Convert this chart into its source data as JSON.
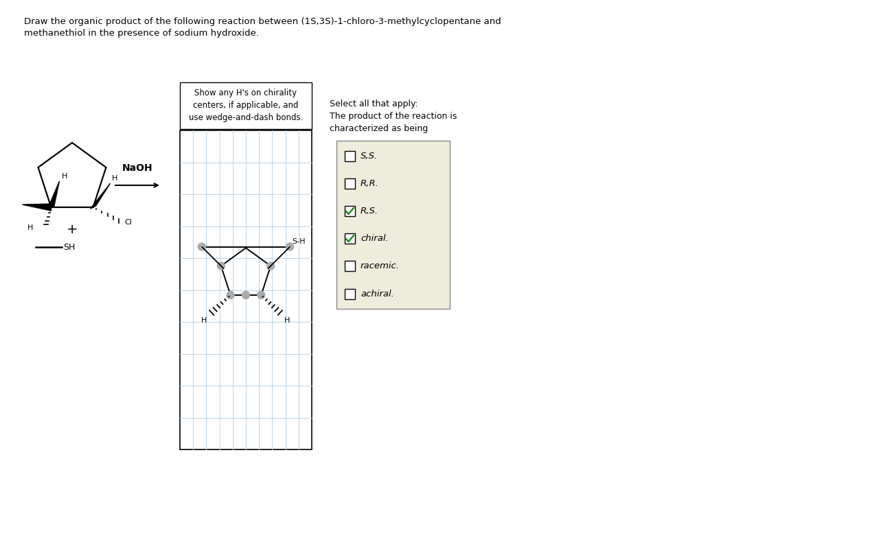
{
  "title_text": "Draw the organic product of the following reaction between (1S,3S)-1-chloro-3-methylcyclopentane and\nmethanethiol in the presence of sodium hydroxide.",
  "title_fontsize": 9.5,
  "bg_color": "#ffffff",
  "grid_color": "#b8d4e8",
  "instruction_text": "Show any H's on chirality\ncenters, if applicable, and\nuse wedge-and-dash bonds.",
  "naoh_text": "NaOH",
  "checkbox_items": [
    "S,S.",
    "R,R.",
    "R,S.",
    "chiral.",
    "racemic.",
    "achiral."
  ],
  "checkbox_checked": [
    false,
    false,
    true,
    true,
    false,
    false
  ],
  "checkbox_bg": "#eeecda",
  "select_text": "Select all that apply:\nThe product of the reaction is\ncharacterized as being",
  "check_color": "#228B22"
}
